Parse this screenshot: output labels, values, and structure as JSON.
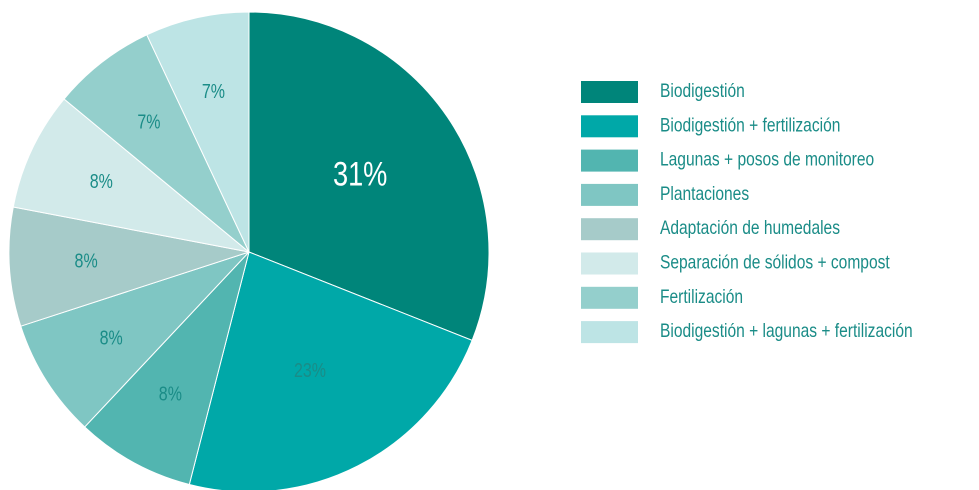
{
  "chart_data": {
    "type": "pie",
    "categories": [
      "Biodigestión",
      "Biodigestión + fertilización",
      "Lagunas + posos de monitoreo",
      "Plantaciones",
      "Adaptación de humedales",
      "Separación de sólidos + compost",
      "Fertilización",
      "Biodigestión + lagunas + fertilización"
    ],
    "values": [
      31,
      23,
      8,
      8,
      8,
      8,
      7,
      7
    ],
    "value_labels": [
      "31%",
      "23%",
      "8%",
      "8%",
      "8%",
      "8%",
      "7%",
      "7%"
    ],
    "colors": [
      "#00857a",
      "#00a8a8",
      "#52b5b0",
      "#7fc6c3",
      "#a6cbc9",
      "#d2eaea",
      "#94cfcc",
      "#bde4e5"
    ],
    "legend": "right"
  }
}
